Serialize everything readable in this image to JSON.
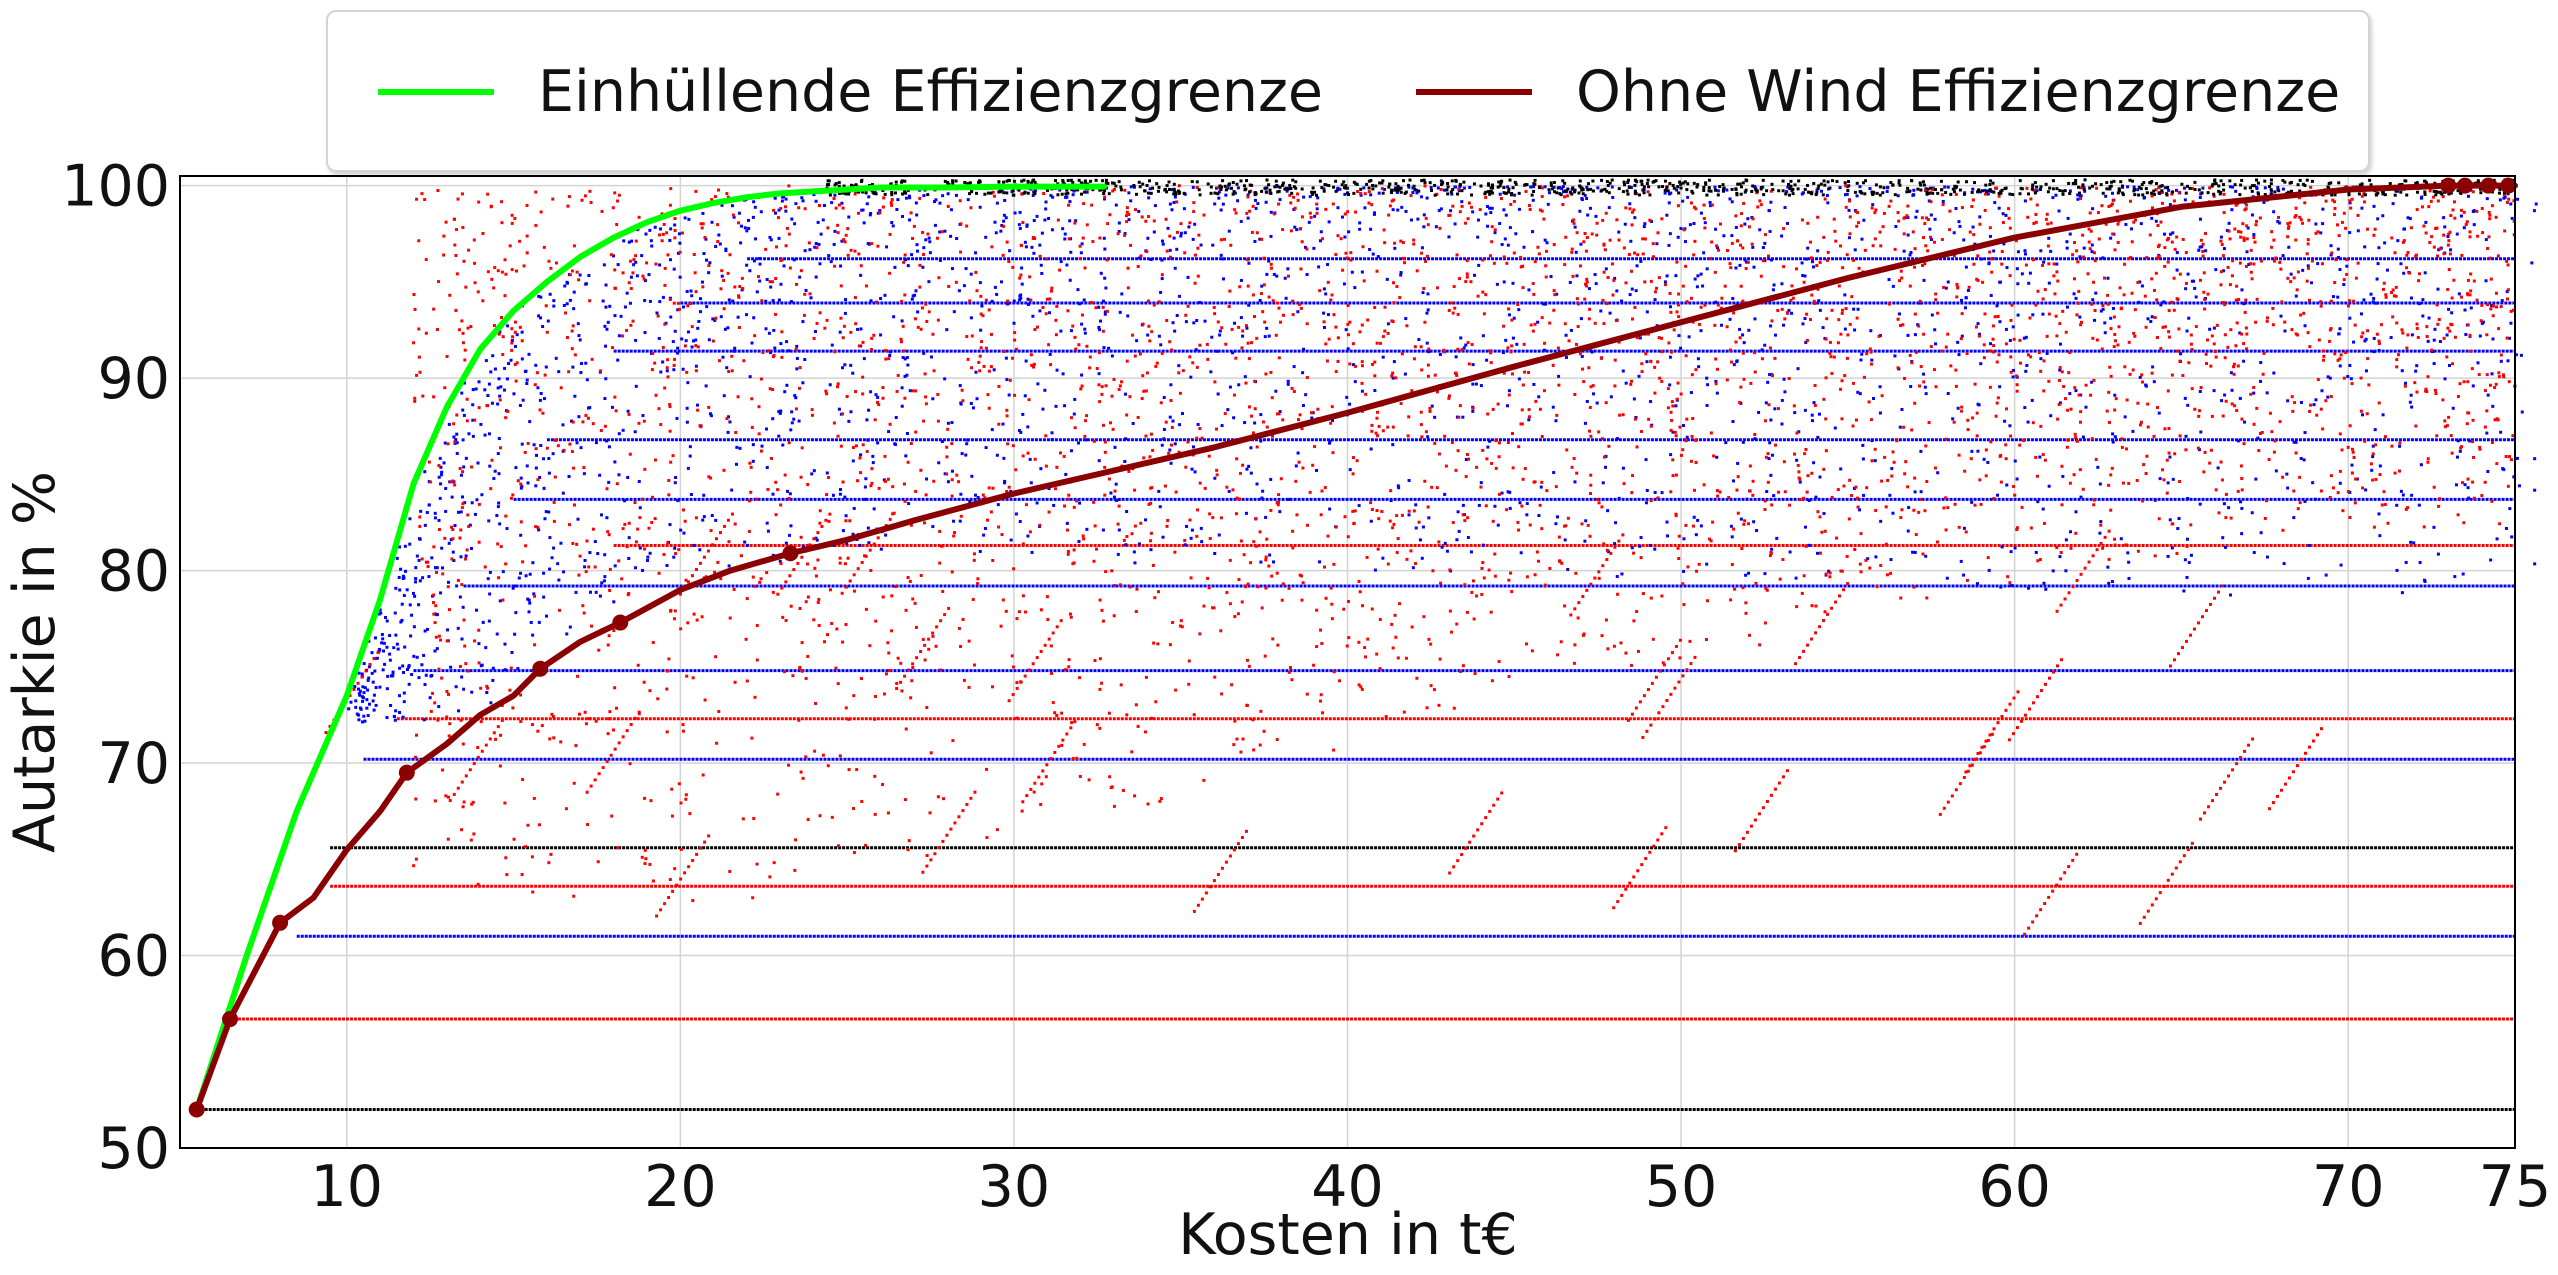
{
  "chart_data": {
    "type": "scatter",
    "xlabel": "Kosten in t€",
    "ylabel": "Autarkie in %",
    "xlim": [
      5,
      75
    ],
    "ylim": [
      50,
      100.5
    ],
    "xticks": [
      "10",
      "20",
      "30",
      "40",
      "50",
      "60",
      "70",
      "75"
    ],
    "yticks": [
      "50",
      "60",
      "70",
      "80",
      "90",
      "100"
    ],
    "grid": true,
    "legend_position": "top-center",
    "series": [
      {
        "name": "Einhüllende Effizienzgrenze",
        "kind": "line",
        "color": "#00ff00",
        "x": [
          5.5,
          7,
          8.5,
          10,
          11,
          12,
          13,
          14,
          15,
          16,
          17,
          18,
          19,
          20,
          21,
          22,
          23,
          24,
          25,
          26,
          28,
          30,
          32.7
        ],
        "y": [
          52,
          60,
          67.5,
          73.5,
          78.5,
          84.5,
          88.5,
          91.5,
          93.5,
          95,
          96.3,
          97.3,
          98.1,
          98.7,
          99.1,
          99.4,
          99.6,
          99.7,
          99.8,
          99.9,
          99.9,
          99.95,
          99.95
        ]
      },
      {
        "name": "Ohne Wind Effizienzgrenze",
        "kind": "line",
        "color": "#8b0000",
        "x": [
          5.5,
          6.5,
          8,
          9,
          10,
          11,
          11.8,
          13,
          14,
          15,
          15.8,
          17,
          18.2,
          20,
          21.5,
          23.3,
          25,
          27,
          30,
          33,
          36,
          40,
          45,
          50,
          55,
          60,
          65,
          70,
          73,
          75
        ],
        "y": [
          52,
          56.7,
          61.7,
          63,
          65.5,
          67.5,
          69.5,
          71,
          72.5,
          73.5,
          74.9,
          76.3,
          77.3,
          79,
          80,
          80.9,
          81.6,
          82.6,
          84,
          85.2,
          86.4,
          88.2,
          90.6,
          92.9,
          95.2,
          97.3,
          98.9,
          99.8,
          100,
          100
        ]
      },
      {
        "name": "",
        "kind": "markers",
        "color": "#8b0000",
        "x": [
          5.5,
          6.5,
          8,
          11.8,
          15.8,
          18.2,
          23.3,
          73,
          73.5,
          74.2,
          74.8
        ],
        "y": [
          52,
          56.7,
          61.7,
          69.5,
          74.9,
          77.3,
          80.9,
          100,
          100,
          100,
          100
        ]
      },
      {
        "name": "",
        "kind": "horizontal-bands",
        "bands": [
          {
            "y": 52.0,
            "color": "#000000",
            "x_start": 5.5
          },
          {
            "y": 56.7,
            "color": "#ff0000",
            "x_start": 6.5
          },
          {
            "y": 61.0,
            "color": "#0000ff",
            "x_start": 8.5
          },
          {
            "y": 63.6,
            "color": "#ff0000",
            "x_start": 9.5
          },
          {
            "y": 65.6,
            "color": "#000000",
            "x_start": 9.5
          },
          {
            "y": 70.2,
            "color": "#0000ff",
            "x_start": 10.5
          },
          {
            "y": 72.3,
            "color": "#ff0000",
            "x_start": 11.5
          },
          {
            "y": 74.8,
            "color": "#0000ff",
            "x_start": 12
          },
          {
            "y": 79.2,
            "color": "#0000ff",
            "x_start": 13.5
          },
          {
            "y": 81.3,
            "color": "#ff0000",
            "x_start": 18
          },
          {
            "y": 83.7,
            "color": "#0000ff",
            "x_start": 15
          },
          {
            "y": 86.8,
            "color": "#0000ff",
            "x_start": 16
          },
          {
            "y": 91.4,
            "color": "#0000ff",
            "x_start": 18
          },
          {
            "y": 93.9,
            "color": "#0000ff",
            "x_start": 20
          },
          {
            "y": 96.2,
            "color": "#0000ff",
            "x_start": 22
          }
        ]
      },
      {
        "name": "",
        "kind": "point-cloud",
        "clouds": [
          {
            "color": "#0000ff",
            "description_ymin": 85,
            "region": "upper-left"
          },
          {
            "color": "#ff0000",
            "region": "middle-right"
          },
          {
            "color": "#000000",
            "region": "top-edge"
          }
        ]
      }
    ]
  }
}
